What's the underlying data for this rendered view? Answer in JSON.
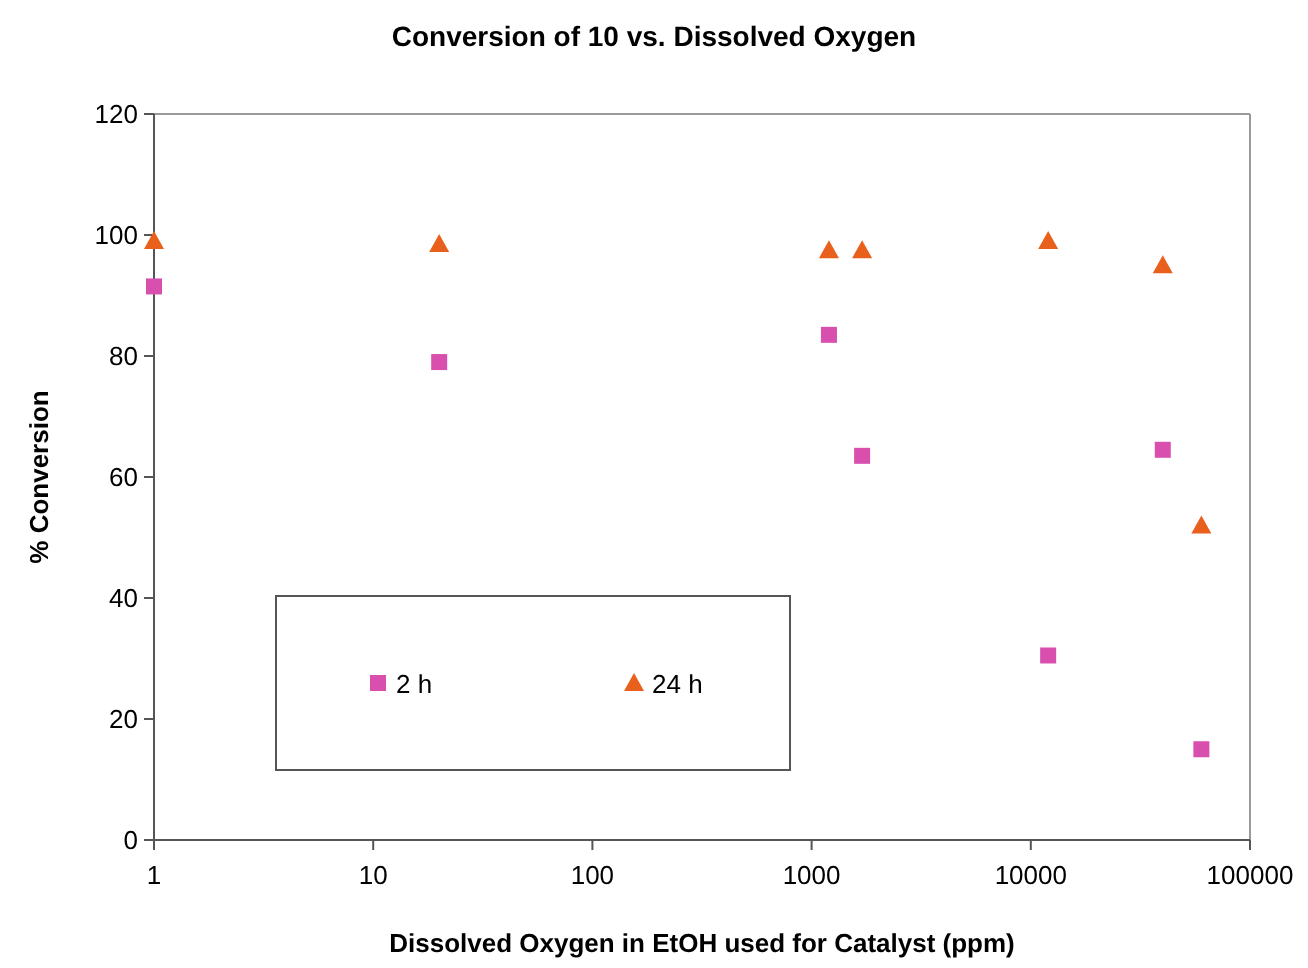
{
  "chart_data": {
    "type": "scatter",
    "title": "Conversion of 10 vs. Dissolved Oxygen",
    "xlabel": "Dissolved Oxygen in EtOH used for Catalyst (ppm)",
    "ylabel": "% Conversion",
    "log": "x",
    "xlim": [
      1,
      100000
    ],
    "xticks": [
      1,
      10,
      100,
      1000,
      10000,
      100000
    ],
    "ylim": [
      0,
      120
    ],
    "yticks": [
      0,
      20,
      40,
      60,
      80,
      100,
      120
    ],
    "grid": false,
    "legend": "bottom left",
    "series": [
      {
        "name": "2 h",
        "color": "#d94fae",
        "marker": "square",
        "x": [
          1,
          20,
          1200,
          1700,
          12000,
          40000,
          60000
        ],
        "values": [
          91.5,
          79,
          83.5,
          63.5,
          30.5,
          64.5,
          15
        ]
      },
      {
        "name": "24 h",
        "color": "#e8601c",
        "marker": "triangle",
        "x": [
          1,
          20,
          1200,
          1700,
          12000,
          40000,
          60000
        ],
        "values": [
          99,
          98.5,
          97.5,
          97.5,
          99,
          95,
          52
        ]
      }
    ]
  }
}
